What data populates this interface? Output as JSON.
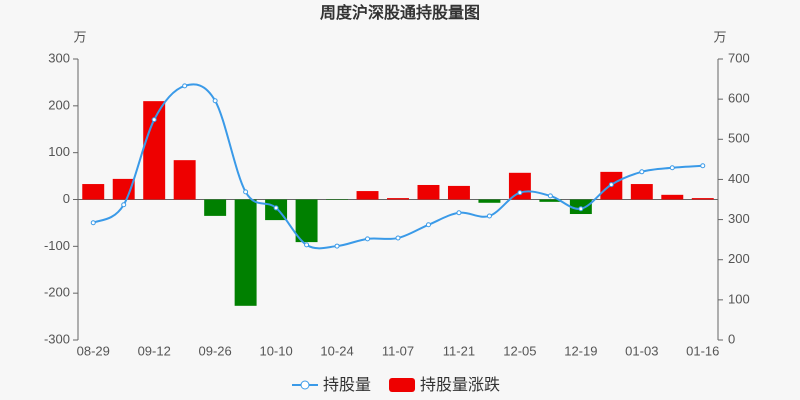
{
  "chart_data": {
    "type": "bar",
    "title": "周度沪深股通持股量图",
    "y_unit": "万",
    "y2_unit": "万",
    "categories": [
      "08-29",
      null,
      "09-12",
      null,
      "09-26",
      null,
      "10-10",
      null,
      "10-24",
      null,
      "11-07",
      null,
      "11-21",
      null,
      "12-05",
      null,
      "12-19",
      null,
      "01-03",
      null,
      "01-16"
    ],
    "ylim": [
      -300,
      300
    ],
    "yticks": [
      -300,
      -200,
      -100,
      0,
      100,
      200,
      300
    ],
    "y2lim": [
      0,
      700
    ],
    "y2ticks": [
      0,
      100,
      200,
      300,
      400,
      500,
      600,
      700
    ],
    "series": [
      {
        "name": "持股量",
        "type": "line",
        "axis": "y2",
        "color": "#3a9ae8",
        "values": [
          292,
          337,
          549,
          633,
          596,
          369,
          329,
          237,
          234,
          252,
          254,
          287,
          317,
          309,
          367,
          359,
          327,
          387,
          419,
          429,
          434
        ]
      },
      {
        "name": "持股量涨跌",
        "type": "bar",
        "color": "#ee0000",
        "negative_color": "#008000",
        "values": [
          33,
          44,
          210,
          84,
          -35,
          -227,
          -44,
          -91,
          -1,
          18,
          3,
          31,
          29,
          -7,
          57,
          -5,
          -31,
          59,
          33,
          10,
          3
        ]
      }
    ]
  }
}
